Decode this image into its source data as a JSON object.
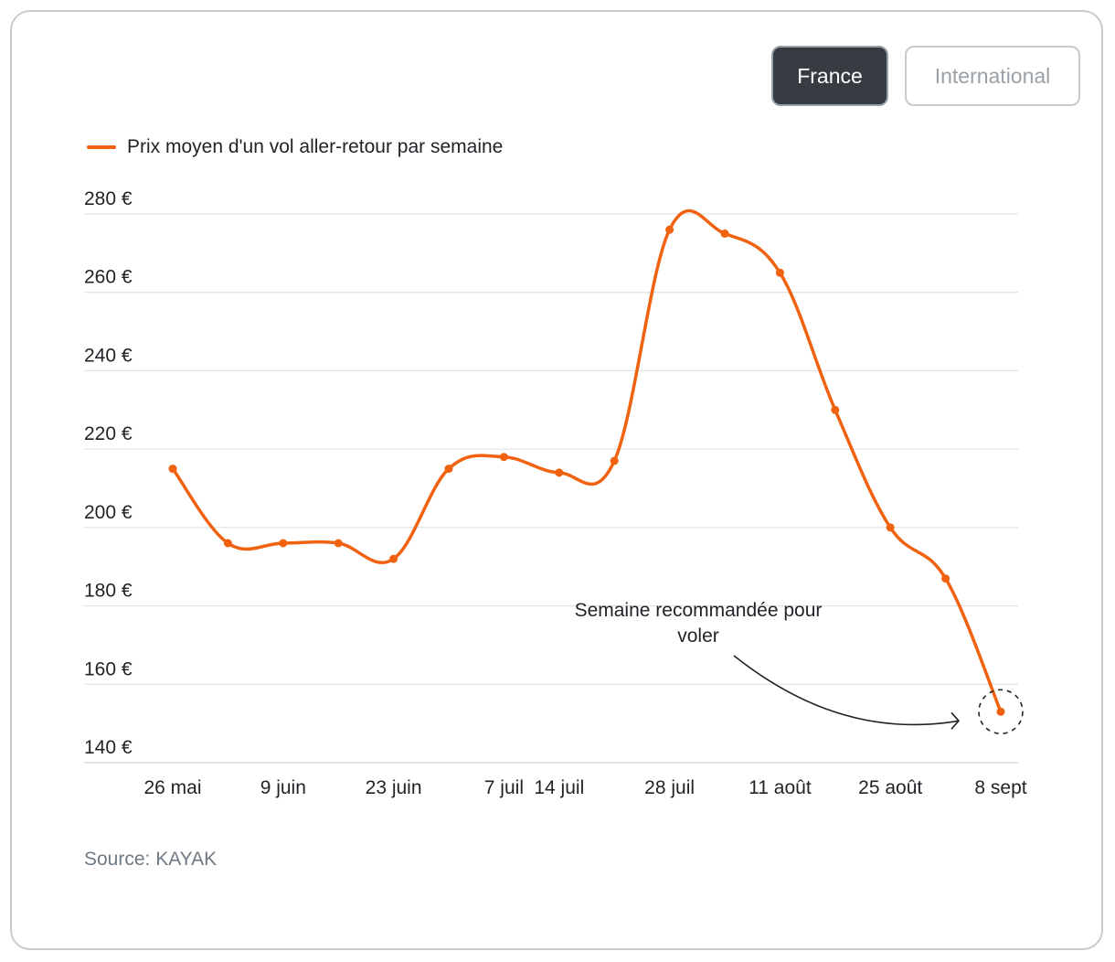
{
  "buttons": {
    "france_label": "France",
    "international_label": "International"
  },
  "legend": {
    "label": "Prix moyen d'un vol aller-retour par semaine"
  },
  "source": "Source: KAYAK",
  "colors": {
    "line": "#f0620f",
    "grid": "#d9dcdf",
    "active_button": "#363c42"
  },
  "chart_data": {
    "type": "line",
    "x": [
      "26 mai",
      "2 juin",
      "9 juin",
      "16 juin",
      "23 juin",
      "30 juin",
      "7 juil",
      "14 juil",
      "21 juil",
      "28 juil",
      "4 août",
      "11 août",
      "18 août",
      "25 août",
      "1 sept",
      "8 sept"
    ],
    "x_tick_labels": [
      "26 mai",
      "9 juin",
      "23 juin",
      "7 juil",
      "14 juil",
      "28 juil",
      "11 août",
      "25 août",
      "8 sept"
    ],
    "x_tick_index": [
      0,
      2,
      4,
      6,
      7,
      9,
      11,
      13,
      15
    ],
    "series": [
      {
        "name": "Prix moyen d'un vol aller-retour par semaine",
        "values": [
          215,
          196,
          196,
          196,
          192,
          215,
          218,
          214,
          217,
          276,
          275,
          265,
          230,
          200,
          187,
          153
        ]
      }
    ],
    "y_ticks": [
      140,
      160,
      180,
      200,
      220,
      240,
      260,
      280
    ],
    "y_tick_labels": [
      "140 €",
      "160 €",
      "180 €",
      "200 €",
      "220 €",
      "240 €",
      "260 €",
      "280 €"
    ],
    "ylim": [
      140,
      280
    ],
    "grid": true,
    "legend_position": "top-left",
    "annotation": {
      "text_line1": "Semaine recommandée pour",
      "text_line2": "voler",
      "target_index": 15
    }
  }
}
